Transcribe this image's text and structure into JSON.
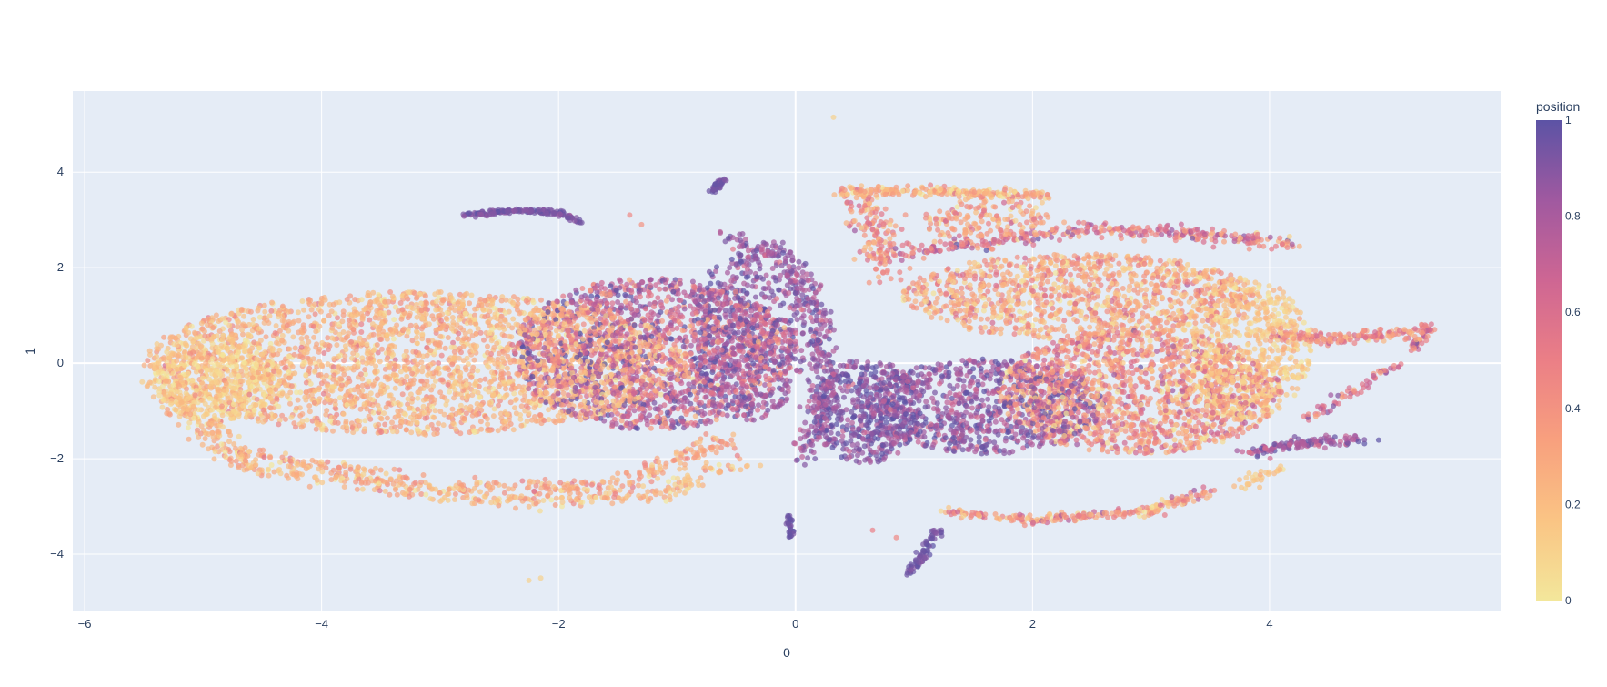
{
  "chart_data": {
    "type": "scatter",
    "xlabel": "0",
    "ylabel": "1",
    "xlim": [
      -6.1,
      5.95
    ],
    "ylim": [
      -5.2,
      5.7
    ],
    "x_ticks": [
      -6,
      -4,
      -2,
      0,
      2,
      4
    ],
    "y_ticks": [
      -4,
      -2,
      0,
      2,
      4
    ],
    "x_tick_labels": [
      "−6",
      "−4",
      "−2",
      "0",
      "2",
      "4"
    ],
    "y_tick_labels": [
      "−4",
      "−2",
      "0",
      "2",
      "4"
    ],
    "grid": true,
    "colorbar": {
      "title": "position",
      "range": [
        0,
        1
      ],
      "ticks": [
        0,
        0.2,
        0.4,
        0.6,
        0.8,
        1
      ],
      "tick_labels": [
        "0",
        "0.2",
        "0.4",
        "0.6",
        "0.8",
        "1"
      ],
      "colorscale": [
        "#f3e79b",
        "#fac484",
        "#f8a07e",
        "#eb7f86",
        "#ce6693",
        "#a059a0",
        "#5c53a5"
      ]
    },
    "colors": {
      "plot_background": "#e5ecf6",
      "grid": "#ffffff"
    },
    "point_opacity": 0.7,
    "regions": [
      {
        "cx": -3.2,
        "cy": 0.0,
        "rx": 2.3,
        "ry": 1.5,
        "v": 0.25,
        "vs": 0.12,
        "n": 2600
      },
      {
        "cx": -1.2,
        "cy": 0.2,
        "rx": 1.2,
        "ry": 1.6,
        "v": 0.7,
        "vs": 0.2,
        "n": 1700
      },
      {
        "cx": -0.4,
        "cy": 0.6,
        "rx": 0.5,
        "ry": 1.8,
        "v": 0.85,
        "vs": 0.12,
        "n": 500
      },
      {
        "cx": -4.9,
        "cy": -0.3,
        "rx": 0.55,
        "ry": 0.9,
        "v": 0.1,
        "vs": 0.06,
        "n": 450
      },
      {
        "cx": 0.6,
        "cy": -1.0,
        "rx": 0.45,
        "ry": 1.1,
        "v": 0.9,
        "vs": 0.1,
        "n": 500
      },
      {
        "cx": 1.6,
        "cy": -0.9,
        "rx": 1.0,
        "ry": 1.0,
        "v": 0.85,
        "vs": 0.12,
        "n": 800
      },
      {
        "cx": 2.9,
        "cy": -0.6,
        "rx": 1.2,
        "ry": 1.3,
        "v": 0.4,
        "vs": 0.18,
        "n": 1500
      },
      {
        "cx": 2.4,
        "cy": 1.4,
        "rx": 1.5,
        "ry": 0.9,
        "v": 0.3,
        "vs": 0.15,
        "n": 1100
      },
      {
        "cx": 3.8,
        "cy": 0.3,
        "rx": 0.55,
        "ry": 1.5,
        "v": 0.15,
        "vs": 0.08,
        "n": 600
      },
      {
        "cx": 1.6,
        "cy": 3.0,
        "rx": 0.55,
        "ry": 0.45,
        "v": 0.35,
        "vs": 0.15,
        "n": 150
      }
    ],
    "curves": [
      {
        "pts": [
          [
            -5.4,
            -0.4
          ],
          [
            -4.6,
            -2.2
          ],
          [
            -2.5,
            -2.9
          ],
          [
            -1.2,
            -2.75
          ],
          [
            -0.4,
            -2.0
          ]
        ],
        "v": 0.22,
        "vs": 0.12,
        "w": 0.09,
        "n": 450
      },
      {
        "pts": [
          [
            -4.8,
            -1.8
          ],
          [
            -3.0,
            -2.6
          ],
          [
            -1.5,
            -2.6
          ],
          [
            -0.6,
            -1.6
          ]
        ],
        "v": 0.3,
        "vs": 0.12,
        "w": 0.08,
        "n": 300
      },
      {
        "pts": [
          [
            -2.8,
            3.1
          ],
          [
            -2.3,
            3.2
          ],
          [
            -2.0,
            3.15
          ],
          [
            -1.8,
            2.95
          ]
        ],
        "v": 0.92,
        "vs": 0.04,
        "w": 0.025,
        "n": 160
      },
      {
        "pts": [
          [
            -0.7,
            3.6
          ],
          [
            -0.6,
            3.85
          ]
        ],
        "v": 0.95,
        "vs": 0.03,
        "w": 0.02,
        "n": 40
      },
      {
        "pts": [
          [
            -0.6,
            2.7
          ],
          [
            -0.1,
            2.3
          ],
          [
            0.2,
            1.0
          ],
          [
            0.25,
            -0.5
          ],
          [
            0.1,
            -2.0
          ]
        ],
        "v": 0.85,
        "vs": 0.1,
        "w": 0.07,
        "n": 350
      },
      {
        "pts": [
          [
            -0.05,
            -3.2
          ],
          [
            -0.05,
            -3.65
          ]
        ],
        "v": 0.95,
        "vs": 0.03,
        "w": 0.015,
        "n": 30
      },
      {
        "pts": [
          [
            1.2,
            -3.5
          ],
          [
            1.1,
            -3.9
          ],
          [
            0.95,
            -4.4
          ]
        ],
        "v": 0.95,
        "vs": 0.03,
        "w": 0.025,
        "n": 70
      },
      {
        "pts": [
          [
            0.4,
            3.6
          ],
          [
            1.2,
            3.6
          ],
          [
            2.1,
            3.5
          ]
        ],
        "v": 0.25,
        "vs": 0.15,
        "w": 0.05,
        "n": 220
      },
      {
        "pts": [
          [
            0.5,
            3.5
          ],
          [
            0.7,
            2.7
          ],
          [
            0.75,
            1.8
          ]
        ],
        "v": 0.4,
        "vs": 0.15,
        "w": 0.1,
        "n": 150
      },
      {
        "pts": [
          [
            0.9,
            2.3
          ],
          [
            2.4,
            2.8
          ],
          [
            3.5,
            2.7
          ],
          [
            4.2,
            2.5
          ]
        ],
        "v": 0.55,
        "vs": 0.2,
        "w": 0.07,
        "n": 320
      },
      {
        "pts": [
          [
            4.0,
            0.6
          ],
          [
            4.6,
            0.5
          ],
          [
            5.3,
            0.7
          ]
        ],
        "v": 0.45,
        "vs": 0.15,
        "w": 0.06,
        "n": 170
      },
      {
        "pts": [
          [
            5.35,
            0.8
          ],
          [
            5.2,
            0.3
          ]
        ],
        "v": 0.6,
        "vs": 0.15,
        "w": 0.03,
        "n": 40
      },
      {
        "pts": [
          [
            3.8,
            -1.9
          ],
          [
            4.2,
            -1.7
          ],
          [
            4.8,
            -1.6
          ]
        ],
        "v": 0.8,
        "vs": 0.12,
        "w": 0.05,
        "n": 130
      },
      {
        "pts": [
          [
            4.3,
            -1.2
          ],
          [
            4.7,
            -0.6
          ],
          [
            5.1,
            0.0
          ]
        ],
        "v": 0.6,
        "vs": 0.15,
        "w": 0.04,
        "n": 60
      },
      {
        "pts": [
          [
            1.3,
            -3.1
          ],
          [
            2.0,
            -3.3
          ],
          [
            3.0,
            -3.1
          ],
          [
            3.5,
            -2.7
          ]
        ],
        "v": 0.4,
        "vs": 0.18,
        "w": 0.05,
        "n": 220
      },
      {
        "pts": [
          [
            3.7,
            -2.6
          ],
          [
            4.1,
            -2.2
          ]
        ],
        "v": 0.15,
        "vs": 0.05,
        "w": 0.05,
        "n": 30
      }
    ],
    "extra_points": [
      {
        "x": 0.32,
        "y": 5.15,
        "v": 0.1
      },
      {
        "x": -2.25,
        "y": -4.55,
        "v": 0.1
      },
      {
        "x": -2.15,
        "y": -4.5,
        "v": 0.1
      },
      {
        "x": 0.85,
        "y": -3.65,
        "v": 0.45
      },
      {
        "x": 0.65,
        "y": -3.5,
        "v": 0.5
      },
      {
        "x": -1.4,
        "y": 3.1,
        "v": 0.45
      },
      {
        "x": -1.3,
        "y": 2.9,
        "v": 0.4
      }
    ]
  }
}
